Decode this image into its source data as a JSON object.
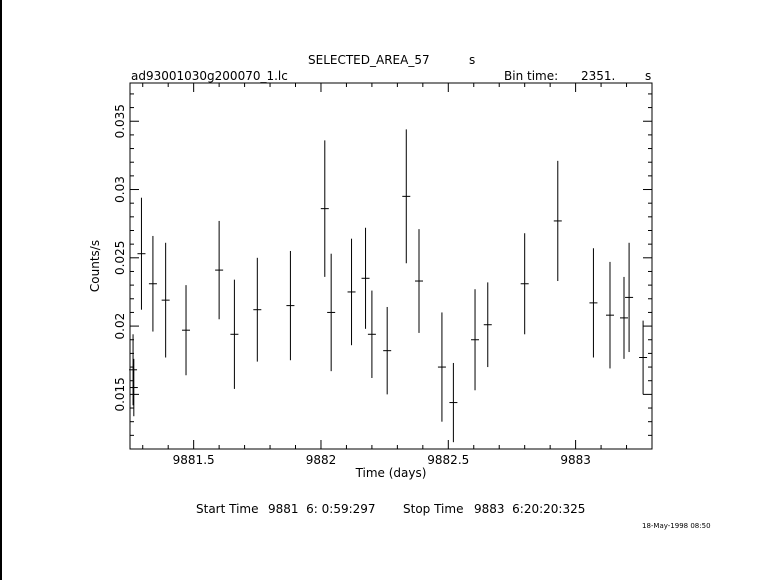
{
  "header": {
    "title": "SELECTED_AREA_57",
    "title_unit": "s",
    "file_name": "ad93001030g200070_1.lc",
    "bin_time_label": "Bin time:",
    "bin_time_value": "2351.",
    "bin_time_unit": "s"
  },
  "footer": {
    "start_label": "Start Time",
    "start_value": "9881  6: 0:59:297",
    "stop_label": "Stop Time",
    "stop_value": "9883  6:20:20:325",
    "timestamp": "18-May-1998 08:50"
  },
  "chart_data": {
    "type": "scatter",
    "xlabel": "Time (days)",
    "ylabel": "Counts/s",
    "xlim": [
      9881.25,
      9883.3
    ],
    "ylim": [
      0.011,
      0.0378
    ],
    "x_ticks": [
      9881.5,
      9882,
      9882.5,
      9883
    ],
    "x_tick_labels": [
      "9881.5",
      "9882",
      "9882.5",
      "9883"
    ],
    "y_ticks": [
      0.015,
      0.02,
      0.025,
      0.03,
      0.035
    ],
    "y_tick_labels": [
      "0.015",
      "0.02",
      "0.025",
      "0.03",
      "0.035"
    ],
    "grid": false,
    "points": [
      {
        "x": 9881.262,
        "y": 0.0168,
        "yerr": 0.0026
      },
      {
        "x": 9881.265,
        "y": 0.0155,
        "yerr": 0.0021
      },
      {
        "x": 9881.295,
        "y": 0.0253,
        "yerr": 0.0041
      },
      {
        "x": 9881.34,
        "y": 0.0231,
        "yerr": 0.0035
      },
      {
        "x": 9881.39,
        "y": 0.0219,
        "yerr": 0.0042
      },
      {
        "x": 9881.47,
        "y": 0.0197,
        "yerr": 0.0033
      },
      {
        "x": 9881.6,
        "y": 0.0241,
        "yerr": 0.0036
      },
      {
        "x": 9881.66,
        "y": 0.0194,
        "yerr": 0.004
      },
      {
        "x": 9881.75,
        "y": 0.0212,
        "yerr": 0.0038
      },
      {
        "x": 9881.88,
        "y": 0.0215,
        "yerr": 0.004
      },
      {
        "x": 9882.015,
        "y": 0.0286,
        "yerr": 0.005
      },
      {
        "x": 9882.04,
        "y": 0.021,
        "yerr": 0.0043
      },
      {
        "x": 9882.12,
        "y": 0.0225,
        "yerr": 0.0039
      },
      {
        "x": 9882.175,
        "y": 0.0235,
        "yerr": 0.0037
      },
      {
        "x": 9882.2,
        "y": 0.0194,
        "yerr": 0.0032
      },
      {
        "x": 9882.26,
        "y": 0.0182,
        "yerr": 0.0032
      },
      {
        "x": 9882.335,
        "y": 0.0295,
        "yerr": 0.0049
      },
      {
        "x": 9882.385,
        "y": 0.0233,
        "yerr": 0.0038
      },
      {
        "x": 9882.475,
        "y": 0.017,
        "yerr": 0.004
      },
      {
        "x": 9882.52,
        "y": 0.0144,
        "yerr": 0.0029
      },
      {
        "x": 9882.605,
        "y": 0.019,
        "yerr": 0.0037
      },
      {
        "x": 9882.655,
        "y": 0.0201,
        "yerr": 0.0031
      },
      {
        "x": 9882.8,
        "y": 0.0231,
        "yerr": 0.0037
      },
      {
        "x": 9882.93,
        "y": 0.0277,
        "yerr": 0.0044
      },
      {
        "x": 9883.07,
        "y": 0.0217,
        "yerr": 0.004
      },
      {
        "x": 9883.135,
        "y": 0.0208,
        "yerr": 0.0039
      },
      {
        "x": 9883.19,
        "y": 0.0206,
        "yerr": 0.003
      },
      {
        "x": 9883.21,
        "y": 0.0221,
        "yerr": 0.004
      },
      {
        "x": 9883.265,
        "y": 0.0177,
        "yerr": 0.0027
      }
    ]
  }
}
